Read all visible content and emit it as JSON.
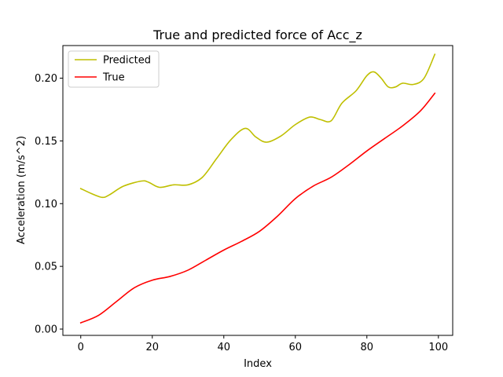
{
  "chart_data": {
    "type": "line",
    "title": "True and predicted force of Acc_z",
    "xlabel": "Index",
    "ylabel": "Acceleration (m/s^2)",
    "xlim": [
      -5,
      104
    ],
    "ylim": [
      -0.005,
      0.226
    ],
    "xticks": [
      0,
      20,
      40,
      60,
      80,
      100
    ],
    "yticks": [
      0.0,
      0.05,
      0.1,
      0.15,
      0.2
    ],
    "ytick_labels": [
      "0.00",
      "0.05",
      "0.10",
      "0.15",
      "0.20"
    ],
    "grid": false,
    "legend_position": "top-left",
    "series": [
      {
        "name": "Predicted",
        "color": "#bfbf00",
        "x": [
          0,
          3,
          6,
          8,
          12,
          17,
          19,
          22,
          26,
          30,
          34,
          38,
          42,
          46,
          49,
          52,
          56,
          60,
          64,
          67,
          70,
          73,
          77,
          80,
          82,
          84,
          86,
          88,
          90,
          93,
          96,
          99
        ],
        "y": [
          0.112,
          0.108,
          0.105,
          0.107,
          0.114,
          0.118,
          0.117,
          0.113,
          0.115,
          0.115,
          0.121,
          0.136,
          0.151,
          0.16,
          0.153,
          0.149,
          0.154,
          0.163,
          0.169,
          0.167,
          0.166,
          0.18,
          0.19,
          0.202,
          0.205,
          0.2,
          0.193,
          0.193,
          0.196,
          0.195,
          0.2,
          0.219
        ]
      },
      {
        "name": "True",
        "color": "#ff0000",
        "x": [
          0,
          5,
          10,
          15,
          20,
          25,
          30,
          35,
          40,
          45,
          50,
          55,
          60,
          65,
          70,
          75,
          80,
          85,
          90,
          95,
          99
        ],
        "y": [
          0.005,
          0.011,
          0.022,
          0.033,
          0.039,
          0.042,
          0.047,
          0.055,
          0.063,
          0.07,
          0.078,
          0.09,
          0.104,
          0.114,
          0.121,
          0.131,
          0.142,
          0.152,
          0.162,
          0.174,
          0.188
        ]
      }
    ]
  }
}
